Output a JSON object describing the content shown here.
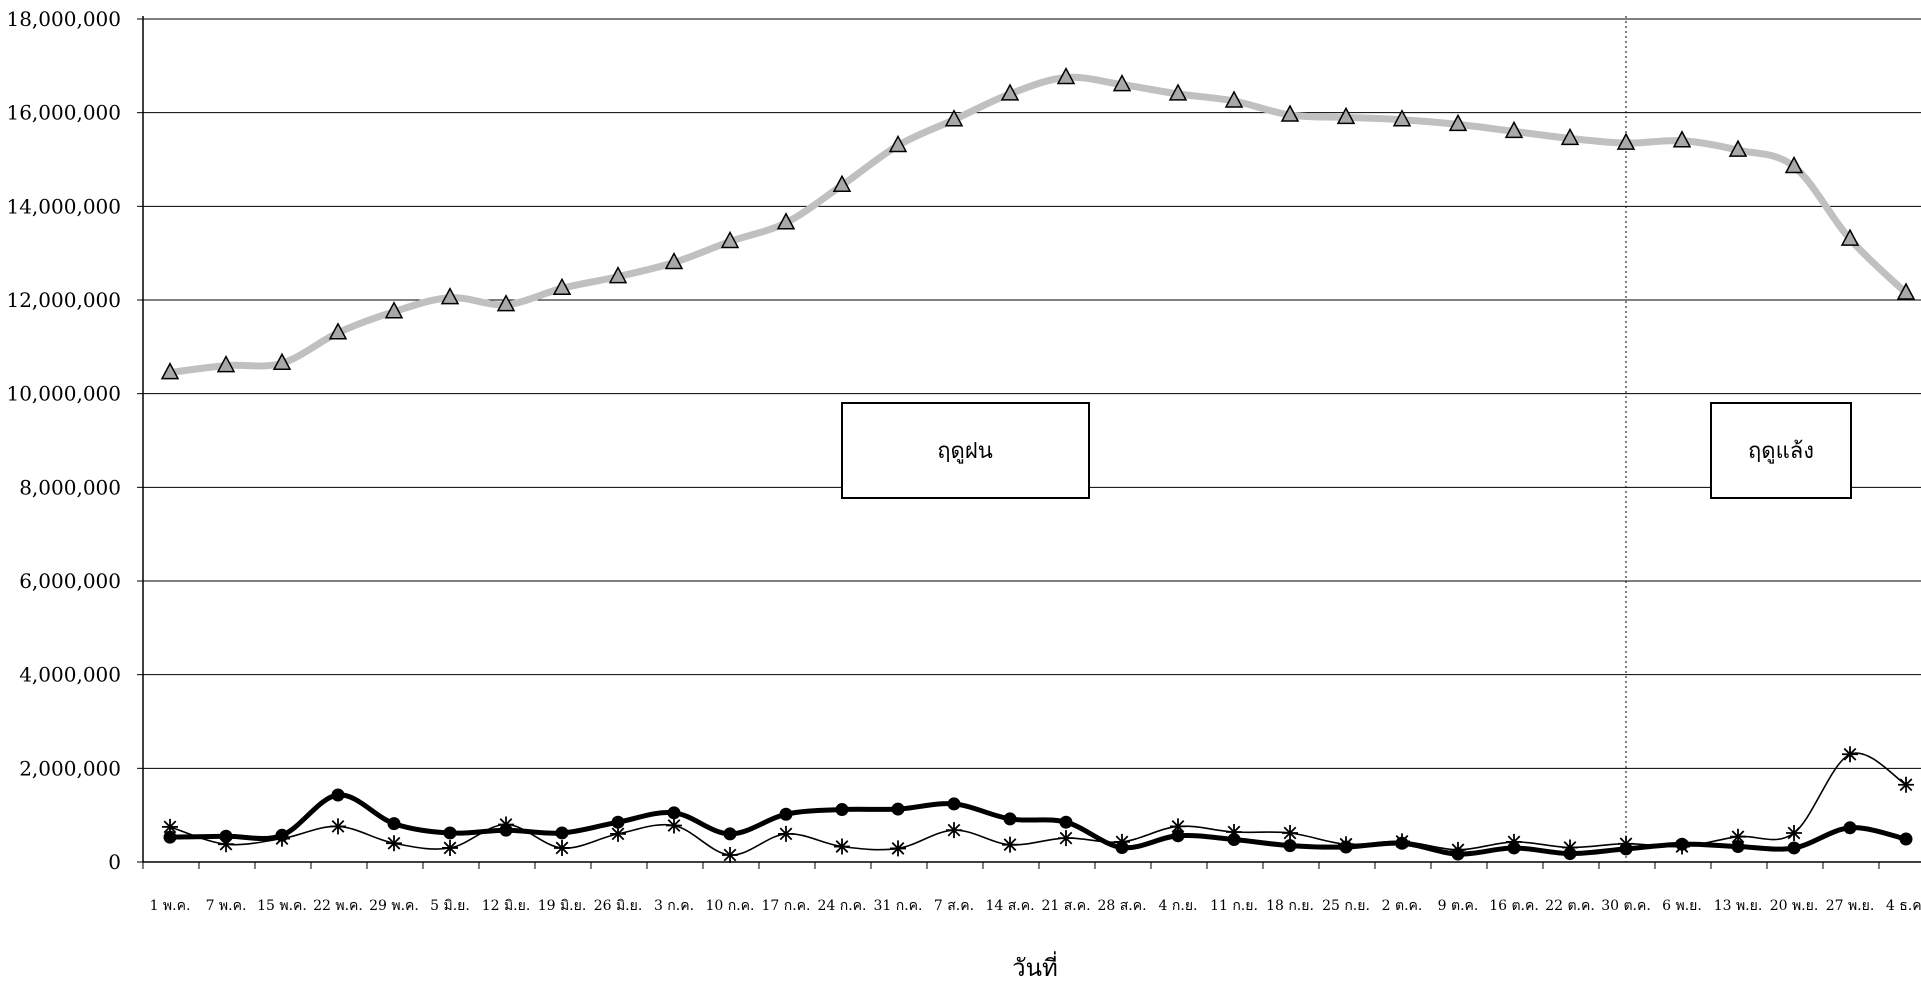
{
  "chart_data": {
    "type": "line",
    "xlabel": "วันที่",
    "ylabel": "",
    "ylim": [
      0,
      18000000
    ],
    "yticks": [
      "0",
      "2,000,000",
      "4,000,000",
      "6,000,000",
      "8,000,000",
      "10,000,000",
      "12,000,000",
      "14,000,000",
      "16,000,000",
      "18,000,000"
    ],
    "ytick_values": [
      0,
      2000000,
      4000000,
      6000000,
      8000000,
      10000000,
      12000000,
      14000000,
      16000000,
      18000000
    ],
    "grid": "horizontal",
    "categories": [
      "1 พ.ค.",
      "7 พ.ค.",
      "15 พ.ค.",
      "22 พ.ค.",
      "29 พ.ค.",
      "5 มิ.ย.",
      "12 มิ.ย.",
      "19 มิ.ย.",
      "26 มิ.ย.",
      "3 ก.ค.",
      "10 ก.ค.",
      "17 ก.ค.",
      "24 ก.ค.",
      "31 ก.ค.",
      "7 ส.ค.",
      "14 ส.ค.",
      "21 ส.ค.",
      "28 ส.ค.",
      "4 ก.ย.",
      "11 ก.ย.",
      "18 ก.ย.",
      "25 ก.ย.",
      "2 ต.ค.",
      "9 ต.ค.",
      "16 ต.ค.",
      "22 ต.ค.",
      "30 ต.ค.",
      "6 พ.ย.",
      "13 พ.ย.",
      "20 พ.ย.",
      "27 พ.ย.",
      "4 ธ.ค."
    ],
    "series": [
      {
        "marker": "triangle",
        "color": "#c0c0c0",
        "values": [
          10450000,
          10600000,
          10650000,
          11300000,
          11750000,
          12050000,
          11900000,
          12250000,
          12500000,
          12800000,
          13250000,
          13650000,
          14450000,
          15300000,
          15850000,
          16400000,
          16750000,
          16600000,
          16400000,
          16250000,
          15950000,
          15900000,
          15850000,
          15750000,
          15600000,
          15450000,
          15350000,
          15400000,
          15200000,
          14850000,
          13300000,
          12150000
        ]
      },
      {
        "marker": "circle",
        "color": "#000000",
        "values": [
          530000,
          550000,
          570000,
          1430000,
          820000,
          620000,
          680000,
          620000,
          850000,
          1050000,
          600000,
          1020000,
          1120000,
          1130000,
          1240000,
          920000,
          850000,
          310000,
          560000,
          480000,
          350000,
          320000,
          400000,
          170000,
          300000,
          180000,
          280000,
          380000,
          330000,
          300000,
          730000,
          490000
        ]
      },
      {
        "marker": "asterisk",
        "color": "#000000",
        "values": [
          750000,
          380000,
          500000,
          760000,
          400000,
          300000,
          800000,
          300000,
          600000,
          780000,
          150000,
          600000,
          330000,
          290000,
          680000,
          370000,
          510000,
          430000,
          760000,
          640000,
          620000,
          380000,
          440000,
          260000,
          430000,
          310000,
          390000,
          330000,
          540000,
          620000,
          2300000,
          1650000
        ]
      }
    ],
    "annotations": [
      {
        "text": "ฤดูฝน"
      },
      {
        "text": "ฤดูแล้ง"
      }
    ],
    "divider_after_category": "30 ต.ค."
  }
}
